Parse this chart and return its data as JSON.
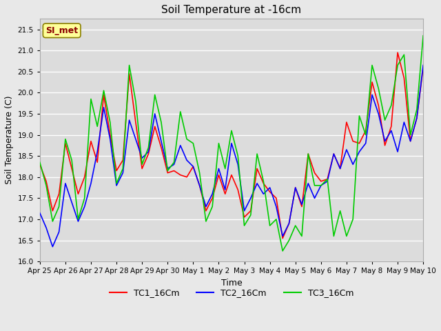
{
  "title": "Soil Temperature at -16cm",
  "xlabel": "Time",
  "ylabel": "Soil Temperature (C)",
  "ylim": [
    16.0,
    21.75
  ],
  "yticks": [
    16.0,
    16.5,
    17.0,
    17.5,
    18.0,
    18.5,
    19.0,
    19.5,
    20.0,
    20.5,
    21.0,
    21.5
  ],
  "background_color": "#e8e8e8",
  "plot_bg_color": "#dcdcdc",
  "grid_color": "#ffffff",
  "legend_label": "SI_met",
  "legend_text_color": "#8b0000",
  "legend_box_color": "#ffff99",
  "line_colors": {
    "TC1_16Cm": "#ff0000",
    "TC2_16Cm": "#0000ff",
    "TC3_16Cm": "#00cc00"
  },
  "x_labels": [
    "Apr 25",
    "Apr 26",
    "Apr 27",
    "Apr 28",
    "Apr 29",
    "Apr 30",
    "May 1",
    "May 2",
    "May 3",
    "May 4",
    "May 5",
    "May 6",
    "May 7",
    "May 8",
    "May 9",
    "May 10"
  ],
  "TC1_16Cm": [
    18.3,
    17.9,
    17.2,
    17.6,
    18.8,
    18.2,
    17.6,
    18.0,
    18.85,
    18.35,
    19.95,
    19.0,
    18.15,
    18.4,
    20.45,
    19.3,
    18.2,
    18.55,
    19.2,
    18.7,
    18.1,
    18.15,
    18.05,
    18.0,
    18.25,
    17.8,
    17.2,
    17.5,
    18.05,
    17.6,
    18.05,
    17.7,
    17.05,
    17.2,
    18.2,
    17.85,
    17.65,
    17.5,
    16.55,
    16.9,
    17.75,
    17.3,
    18.55,
    18.1,
    17.9,
    17.95,
    18.55,
    18.2,
    19.3,
    18.85,
    18.8,
    19.1,
    20.25,
    19.7,
    18.75,
    19.2,
    20.95,
    20.35,
    18.85,
    19.4,
    20.6
  ],
  "TC2_16Cm": [
    17.15,
    16.8,
    16.35,
    16.7,
    17.85,
    17.4,
    16.95,
    17.3,
    17.85,
    18.6,
    19.65,
    18.9,
    17.8,
    18.1,
    19.35,
    18.9,
    18.45,
    18.6,
    19.5,
    18.85,
    18.2,
    18.3,
    18.75,
    18.4,
    18.25,
    17.8,
    17.3,
    17.6,
    18.2,
    17.7,
    18.8,
    18.3,
    17.2,
    17.5,
    17.85,
    17.6,
    17.75,
    17.3,
    16.6,
    16.9,
    17.75,
    17.35,
    17.85,
    17.5,
    17.8,
    17.9,
    18.55,
    18.2,
    18.65,
    18.3,
    18.6,
    18.8,
    19.95,
    19.5,
    18.85,
    19.1,
    18.6,
    19.3,
    18.85,
    19.4,
    20.65
  ],
  "TC3_16Cm": [
    18.35,
    17.8,
    16.95,
    17.3,
    18.9,
    18.4,
    17.0,
    17.5,
    19.85,
    19.2,
    20.05,
    19.3,
    17.85,
    18.2,
    20.65,
    19.8,
    18.3,
    18.7,
    19.95,
    19.3,
    18.15,
    18.35,
    19.55,
    18.9,
    18.8,
    18.1,
    16.95,
    17.3,
    18.8,
    18.2,
    19.1,
    18.5,
    16.85,
    17.1,
    18.55,
    17.9,
    16.85,
    17.0,
    16.25,
    16.5,
    16.85,
    16.6,
    18.55,
    17.8,
    17.8,
    17.95,
    16.6,
    17.2,
    16.6,
    17.0,
    19.45,
    19.0,
    20.65,
    20.1,
    19.35,
    19.7,
    20.65,
    20.9,
    19.0,
    19.6,
    21.35
  ],
  "n_points": 61
}
